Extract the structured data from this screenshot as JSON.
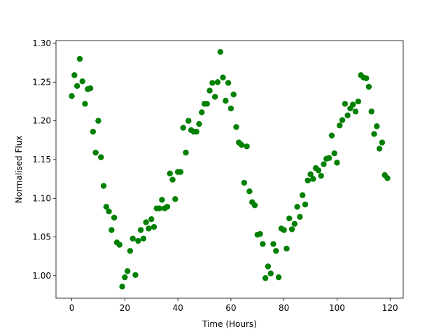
{
  "chart_data": {
    "type": "scatter",
    "x_label": "Time (Hours)",
    "y_label": "Normalised Flux",
    "color": "#008000",
    "x": [
      0,
      1,
      2,
      3,
      4,
      5,
      6,
      7,
      8,
      9,
      10,
      11,
      12,
      13,
      14,
      15,
      16,
      17,
      18,
      19,
      20,
      21,
      22,
      23,
      24,
      25,
      26,
      27,
      28,
      29,
      30,
      31,
      32,
      33,
      34,
      35,
      36,
      37,
      38,
      39,
      40,
      41,
      42,
      43,
      44,
      45,
      46,
      47,
      48,
      49,
      50,
      51,
      52,
      53,
      54,
      55,
      56,
      57,
      58,
      59,
      60,
      61,
      62,
      63,
      64,
      65,
      66,
      67,
      68,
      69,
      70,
      71,
      72,
      73,
      74,
      75,
      76,
      77,
      78,
      79,
      80,
      81,
      82,
      83,
      84,
      85,
      86,
      87,
      88,
      89,
      90,
      91,
      92,
      93,
      94,
      95,
      96,
      97,
      98,
      99,
      100,
      101,
      102,
      103,
      104,
      105,
      106,
      107,
      108,
      109,
      110,
      111,
      112,
      113,
      114,
      115,
      116,
      117,
      118,
      119
    ],
    "values": [
      1.232,
      1.259,
      1.245,
      1.28,
      1.251,
      1.222,
      1.241,
      1.242,
      1.186,
      1.159,
      1.2,
      1.153,
      1.116,
      1.089,
      1.083,
      1.059,
      1.075,
      1.043,
      1.04,
      0.986,
      0.998,
      1.006,
      1.032,
      1.048,
      1.001,
      1.045,
      1.059,
      1.048,
      1.069,
      1.061,
      1.073,
      1.063,
      1.087,
      1.087,
      1.098,
      1.087,
      1.089,
      1.132,
      1.124,
      1.099,
      1.134,
      1.134,
      1.191,
      1.159,
      1.2,
      1.188,
      1.186,
      1.186,
      1.196,
      1.211,
      1.222,
      1.222,
      1.239,
      1.249,
      1.231,
      1.25,
      1.289,
      1.256,
      1.226,
      1.249,
      1.216,
      1.234,
      1.192,
      1.172,
      1.169,
      1.12,
      1.167,
      1.109,
      1.095,
      1.091,
      1.053,
      1.054,
      1.041,
      0.997,
      1.012,
      1.003,
      1.041,
      1.032,
      0.998,
      1.061,
      1.059,
      1.035,
      1.074,
      1.06,
      1.067,
      1.089,
      1.076,
      1.104,
      1.092,
      1.123,
      1.131,
      1.125,
      1.139,
      1.136,
      1.129,
      1.144,
      1.151,
      1.152,
      1.181,
      1.158,
      1.146,
      1.194,
      1.201,
      1.222,
      1.207,
      1.216,
      1.221,
      1.212,
      1.225,
      1.259,
      1.256,
      1.255,
      1.244,
      1.212,
      1.183,
      1.193,
      1.164,
      1.172,
      1.13,
      1.126
    ],
    "xlim": [
      -5.95,
      124.95
    ],
    "xticks": [
      0,
      20,
      40,
      60,
      80,
      100,
      120
    ],
    "ylim": [
      0.971,
      1.3036
    ],
    "yticks": [
      {
        "value": 1,
        "label": "1.00"
      },
      1.05,
      {
        "value": 1.1,
        "label": "1.10"
      },
      1.15,
      {
        "value": 1.2,
        "label": "1.20"
      },
      1.25,
      {
        "value": 1.3,
        "label": "1.30"
      }
    ]
  }
}
